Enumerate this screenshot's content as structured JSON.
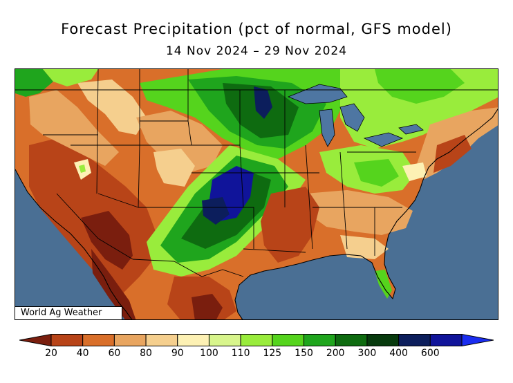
{
  "header": {
    "title": "Forecast Precipitation (pct of normal, GFS model)",
    "subtitle": "14 Nov 2024 – 29 Nov 2024"
  },
  "credit": "World Ag Weather",
  "legend": {
    "colors": [
      "#7a1e0e",
      "#b84418",
      "#d96f2a",
      "#e8a560",
      "#f5cf8e",
      "#fdf1b4",
      "#d8f58c",
      "#99ec3c",
      "#55d41d",
      "#1fa51d",
      "#0e6b10",
      "#073a0d",
      "#0c1e5c",
      "#10149a",
      "#1a2df0"
    ],
    "labels": [
      "20",
      "40",
      "60",
      "80",
      "90",
      "100",
      "110",
      "125",
      "150",
      "200",
      "300",
      "400",
      "600"
    ]
  },
  "map": {
    "ocean_color": "#4a6f94",
    "lake_color": "#4e76a2"
  }
}
